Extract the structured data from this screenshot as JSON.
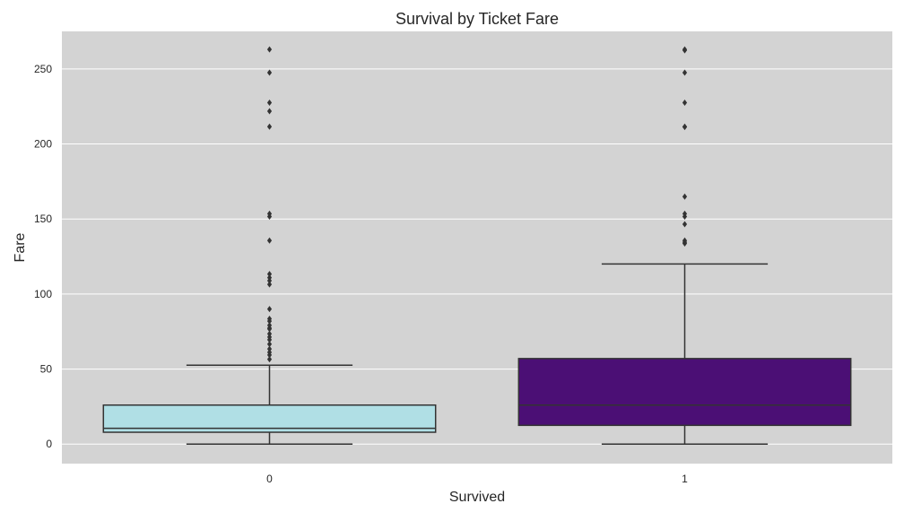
{
  "chart_data": {
    "type": "box",
    "title": "Survival by Ticket Fare",
    "xlabel": "Survived",
    "ylabel": "Fare",
    "categories": [
      "0",
      "1"
    ],
    "ylim": [
      -13,
      275
    ],
    "yticks": [
      0,
      50,
      100,
      150,
      200,
      250
    ],
    "grid": true,
    "background": "#d3d3d3",
    "box_edge_color": "#333333",
    "outlier_color": "#333333",
    "boxes": [
      {
        "category": "0",
        "fill": "#b0dfe5",
        "q1": 7.9,
        "median": 10.5,
        "q3": 26,
        "whisker_low": 0,
        "whisker_high": 52.6,
        "outliers": [
          56.5,
          59.4,
          61.2,
          63.4,
          66.6,
          69.5,
          71.3,
          73.5,
          76.7,
          77.3,
          79.2,
          81.9,
          83.5,
          90,
          106.4,
          108.9,
          110.9,
          113.3,
          135.6,
          151.6,
          153.5,
          211.5,
          221.8,
          227.5,
          247.5,
          263
        ]
      },
      {
        "category": "1",
        "fill": "#4b0f75",
        "q1": 12.5,
        "median": 26,
        "q3": 57,
        "whisker_low": 0,
        "whisker_high": 120,
        "outliers": [
          133.7,
          134.5,
          135.6,
          146.5,
          151.6,
          153.5,
          164.9,
          211.3,
          211.5,
          227.5,
          247.5,
          262.4,
          263
        ]
      }
    ]
  }
}
